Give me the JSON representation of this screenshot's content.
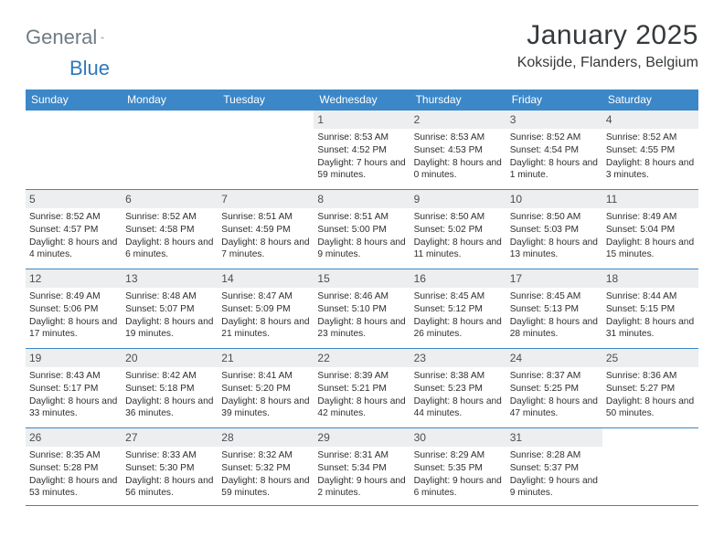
{
  "brand": {
    "part1": "General",
    "part2": "Blue"
  },
  "title": "January 2025",
  "location": "Koksijde, Flanders, Belgium",
  "colors": {
    "header_bg": "#3b87c8",
    "header_text": "#ffffff",
    "daynum_bg": "#eceeef",
    "daynum_text": "#4a4f53",
    "body_text": "#2e2e2e",
    "rule": "#3b87c8",
    "title_text": "#35393c",
    "logo_gray": "#6f7b84",
    "logo_blue": "#2f78bc"
  },
  "weekdays": [
    "Sunday",
    "Monday",
    "Tuesday",
    "Wednesday",
    "Thursday",
    "Friday",
    "Saturday"
  ],
  "weeks": [
    [
      null,
      null,
      null,
      {
        "n": "1",
        "sr": "8:53 AM",
        "ss": "4:52 PM",
        "dl": "Daylight: 7 hours and 59 minutes."
      },
      {
        "n": "2",
        "sr": "8:53 AM",
        "ss": "4:53 PM",
        "dl": "Daylight: 8 hours and 0 minutes."
      },
      {
        "n": "3",
        "sr": "8:52 AM",
        "ss": "4:54 PM",
        "dl": "Daylight: 8 hours and 1 minute."
      },
      {
        "n": "4",
        "sr": "8:52 AM",
        "ss": "4:55 PM",
        "dl": "Daylight: 8 hours and 3 minutes."
      }
    ],
    [
      {
        "n": "5",
        "sr": "8:52 AM",
        "ss": "4:57 PM",
        "dl": "Daylight: 8 hours and 4 minutes."
      },
      {
        "n": "6",
        "sr": "8:52 AM",
        "ss": "4:58 PM",
        "dl": "Daylight: 8 hours and 6 minutes."
      },
      {
        "n": "7",
        "sr": "8:51 AM",
        "ss": "4:59 PM",
        "dl": "Daylight: 8 hours and 7 minutes."
      },
      {
        "n": "8",
        "sr": "8:51 AM",
        "ss": "5:00 PM",
        "dl": "Daylight: 8 hours and 9 minutes."
      },
      {
        "n": "9",
        "sr": "8:50 AM",
        "ss": "5:02 PM",
        "dl": "Daylight: 8 hours and 11 minutes."
      },
      {
        "n": "10",
        "sr": "8:50 AM",
        "ss": "5:03 PM",
        "dl": "Daylight: 8 hours and 13 minutes."
      },
      {
        "n": "11",
        "sr": "8:49 AM",
        "ss": "5:04 PM",
        "dl": "Daylight: 8 hours and 15 minutes."
      }
    ],
    [
      {
        "n": "12",
        "sr": "8:49 AM",
        "ss": "5:06 PM",
        "dl": "Daylight: 8 hours and 17 minutes."
      },
      {
        "n": "13",
        "sr": "8:48 AM",
        "ss": "5:07 PM",
        "dl": "Daylight: 8 hours and 19 minutes."
      },
      {
        "n": "14",
        "sr": "8:47 AM",
        "ss": "5:09 PM",
        "dl": "Daylight: 8 hours and 21 minutes."
      },
      {
        "n": "15",
        "sr": "8:46 AM",
        "ss": "5:10 PM",
        "dl": "Daylight: 8 hours and 23 minutes."
      },
      {
        "n": "16",
        "sr": "8:45 AM",
        "ss": "5:12 PM",
        "dl": "Daylight: 8 hours and 26 minutes."
      },
      {
        "n": "17",
        "sr": "8:45 AM",
        "ss": "5:13 PM",
        "dl": "Daylight: 8 hours and 28 minutes."
      },
      {
        "n": "18",
        "sr": "8:44 AM",
        "ss": "5:15 PM",
        "dl": "Daylight: 8 hours and 31 minutes."
      }
    ],
    [
      {
        "n": "19",
        "sr": "8:43 AM",
        "ss": "5:17 PM",
        "dl": "Daylight: 8 hours and 33 minutes."
      },
      {
        "n": "20",
        "sr": "8:42 AM",
        "ss": "5:18 PM",
        "dl": "Daylight: 8 hours and 36 minutes."
      },
      {
        "n": "21",
        "sr": "8:41 AM",
        "ss": "5:20 PM",
        "dl": "Daylight: 8 hours and 39 minutes."
      },
      {
        "n": "22",
        "sr": "8:39 AM",
        "ss": "5:21 PM",
        "dl": "Daylight: 8 hours and 42 minutes."
      },
      {
        "n": "23",
        "sr": "8:38 AM",
        "ss": "5:23 PM",
        "dl": "Daylight: 8 hours and 44 minutes."
      },
      {
        "n": "24",
        "sr": "8:37 AM",
        "ss": "5:25 PM",
        "dl": "Daylight: 8 hours and 47 minutes."
      },
      {
        "n": "25",
        "sr": "8:36 AM",
        "ss": "5:27 PM",
        "dl": "Daylight: 8 hours and 50 minutes."
      }
    ],
    [
      {
        "n": "26",
        "sr": "8:35 AM",
        "ss": "5:28 PM",
        "dl": "Daylight: 8 hours and 53 minutes."
      },
      {
        "n": "27",
        "sr": "8:33 AM",
        "ss": "5:30 PM",
        "dl": "Daylight: 8 hours and 56 minutes."
      },
      {
        "n": "28",
        "sr": "8:32 AM",
        "ss": "5:32 PM",
        "dl": "Daylight: 8 hours and 59 minutes."
      },
      {
        "n": "29",
        "sr": "8:31 AM",
        "ss": "5:34 PM",
        "dl": "Daylight: 9 hours and 2 minutes."
      },
      {
        "n": "30",
        "sr": "8:29 AM",
        "ss": "5:35 PM",
        "dl": "Daylight: 9 hours and 6 minutes."
      },
      {
        "n": "31",
        "sr": "8:28 AM",
        "ss": "5:37 PM",
        "dl": "Daylight: 9 hours and 9 minutes."
      },
      null
    ]
  ]
}
